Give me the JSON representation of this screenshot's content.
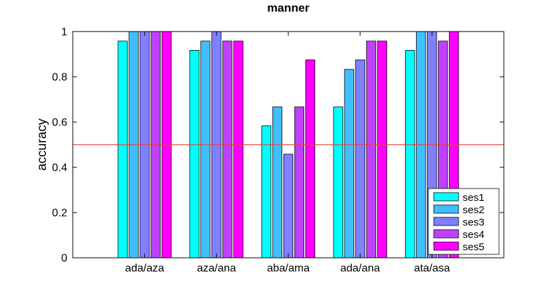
{
  "chart_data": {
    "type": "bar",
    "title": "manner",
    "xlabel": "",
    "ylabel": "accuracy",
    "ylim": [
      0,
      1
    ],
    "yticks": [
      0,
      0.2,
      0.4,
      0.6,
      0.8,
      1
    ],
    "ytick_labels": [
      "0",
      "0.2",
      "0.4",
      "0.6",
      "0.8",
      "1"
    ],
    "categories": [
      "ada/aza",
      "aza/ana",
      "aba/ama",
      "ada/ana",
      "ata/asa"
    ],
    "series": [
      {
        "name": "ses1",
        "color": "#00ffff",
        "values": [
          0.958,
          0.917,
          0.583,
          0.667,
          0.917
        ]
      },
      {
        "name": "ses2",
        "color": "#40bfff",
        "values": [
          1.0,
          0.958,
          0.667,
          0.833,
          1.0
        ]
      },
      {
        "name": "ses3",
        "color": "#8080ff",
        "values": [
          1.0,
          1.0,
          0.458,
          0.875,
          1.0
        ]
      },
      {
        "name": "ses4",
        "color": "#bf40ff",
        "values": [
          1.0,
          0.958,
          0.667,
          0.958,
          0.958
        ]
      },
      {
        "name": "ses5",
        "color": "#ff00ff",
        "values": [
          1.0,
          0.958,
          0.875,
          0.958,
          1.0
        ]
      }
    ],
    "reference_line": {
      "y": 0.5,
      "color": "#e8403a"
    },
    "legend_position": "bottom-right",
    "grid": false
  }
}
